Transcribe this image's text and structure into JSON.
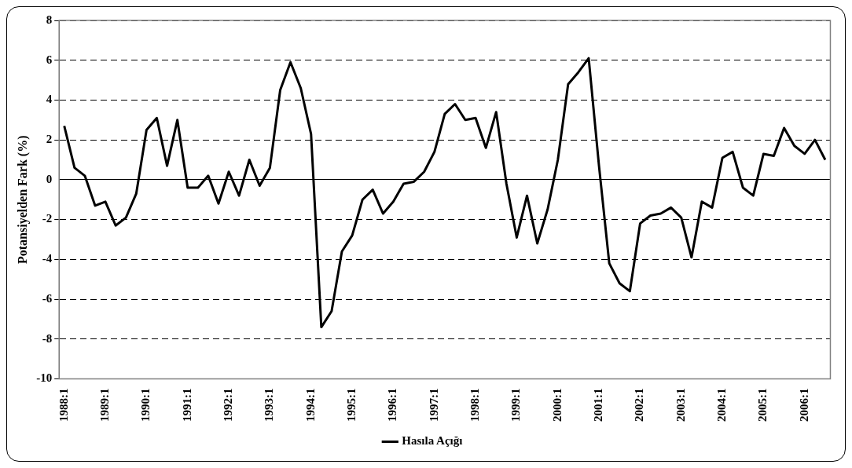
{
  "chart_data": {
    "type": "line",
    "ylabel": "Potansiyelden Fark (%)",
    "categories": [
      "1988:1",
      null,
      null,
      null,
      "1989:1",
      null,
      null,
      null,
      "1990:1",
      null,
      null,
      null,
      "1991:1",
      null,
      null,
      null,
      "1992:1",
      null,
      null,
      null,
      "1993:1",
      null,
      null,
      null,
      "1994:1",
      null,
      null,
      null,
      "1995:1",
      null,
      null,
      null,
      "1996:1",
      null,
      null,
      null,
      "1997:1",
      null,
      null,
      null,
      "1998:1",
      null,
      null,
      null,
      "1999:1",
      null,
      null,
      null,
      "2000:1",
      null,
      null,
      null,
      "2001:1",
      null,
      null,
      null,
      "2002:1",
      null,
      null,
      null,
      "2003:1",
      null,
      null,
      null,
      "2004:1",
      null,
      null,
      null,
      "2005:1",
      null,
      null,
      null,
      "2006:1",
      null,
      null
    ],
    "series": [
      {
        "name": "Hasıla Açığı",
        "color": "#000000",
        "values": [
          2.7,
          0.6,
          0.2,
          -1.3,
          -1.1,
          -2.3,
          -1.9,
          -0.7,
          2.5,
          3.1,
          0.7,
          3.0,
          -0.4,
          -0.4,
          0.2,
          -1.2,
          0.4,
          -0.8,
          1.0,
          -0.3,
          0.6,
          4.5,
          5.9,
          4.6,
          2.3,
          -7.4,
          -6.6,
          -3.6,
          -2.8,
          -1.0,
          -0.5,
          -1.7,
          -1.1,
          -0.2,
          -0.1,
          0.4,
          1.4,
          3.3,
          3.8,
          3.0,
          3.1,
          1.6,
          3.4,
          -0.2,
          -2.9,
          -0.8,
          -3.2,
          -1.5,
          1.0,
          4.8,
          5.4,
          6.1,
          0.7,
          -4.2,
          -5.2,
          -5.6,
          -2.2,
          -1.8,
          -1.7,
          -1.4,
          -1.9,
          -3.9,
          -1.1,
          -1.4,
          1.1,
          1.4,
          -0.4,
          -0.8,
          1.3,
          1.2,
          2.6,
          1.7,
          1.3,
          2.0,
          1.0
        ]
      }
    ],
    "ylim": [
      -10,
      8
    ],
    "yticks": [
      -10,
      -8,
      -6,
      -4,
      -2,
      0,
      2,
      4,
      6,
      8
    ],
    "grid": "y",
    "legend": "bottom",
    "marker": "none",
    "line_style": "solid"
  }
}
